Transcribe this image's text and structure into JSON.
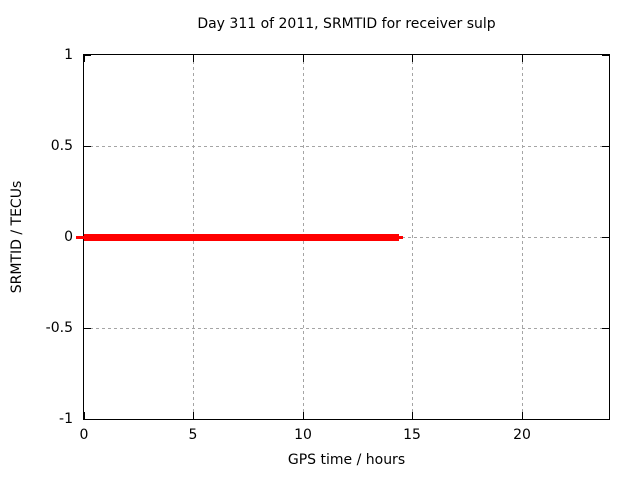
{
  "chart_data": {
    "type": "line",
    "title": "Day 311 of 2011, SRMTID for receiver sulp",
    "xlabel": "GPS time / hours",
    "ylabel": "SRMTID / TECUs",
    "xlim": [
      0,
      24
    ],
    "ylim": [
      -1,
      1
    ],
    "xticks": [
      0,
      5,
      10,
      15,
      20
    ],
    "yticks": [
      1,
      0.5,
      0,
      -0.5,
      -1
    ],
    "xtick_labels": [
      "0",
      "5",
      "10",
      "15",
      "20"
    ],
    "ytick_labels": [
      "1",
      "0.5",
      "0",
      "-0.5",
      "-1"
    ],
    "grid": true,
    "grid_style": "dashed",
    "legend_position": "none",
    "series": [
      {
        "name": "SRMTID",
        "color": "#ff0000",
        "style": "thick-horizontal-line",
        "points": [
          {
            "x": 0,
            "y": 0
          },
          {
            "x": 14.6,
            "y": 0
          }
        ]
      }
    ]
  },
  "colors": {
    "background": "#ffffff",
    "text": "#000000",
    "axis": "#000000",
    "grid": "#a5a5a5",
    "series": "#ff0000"
  }
}
